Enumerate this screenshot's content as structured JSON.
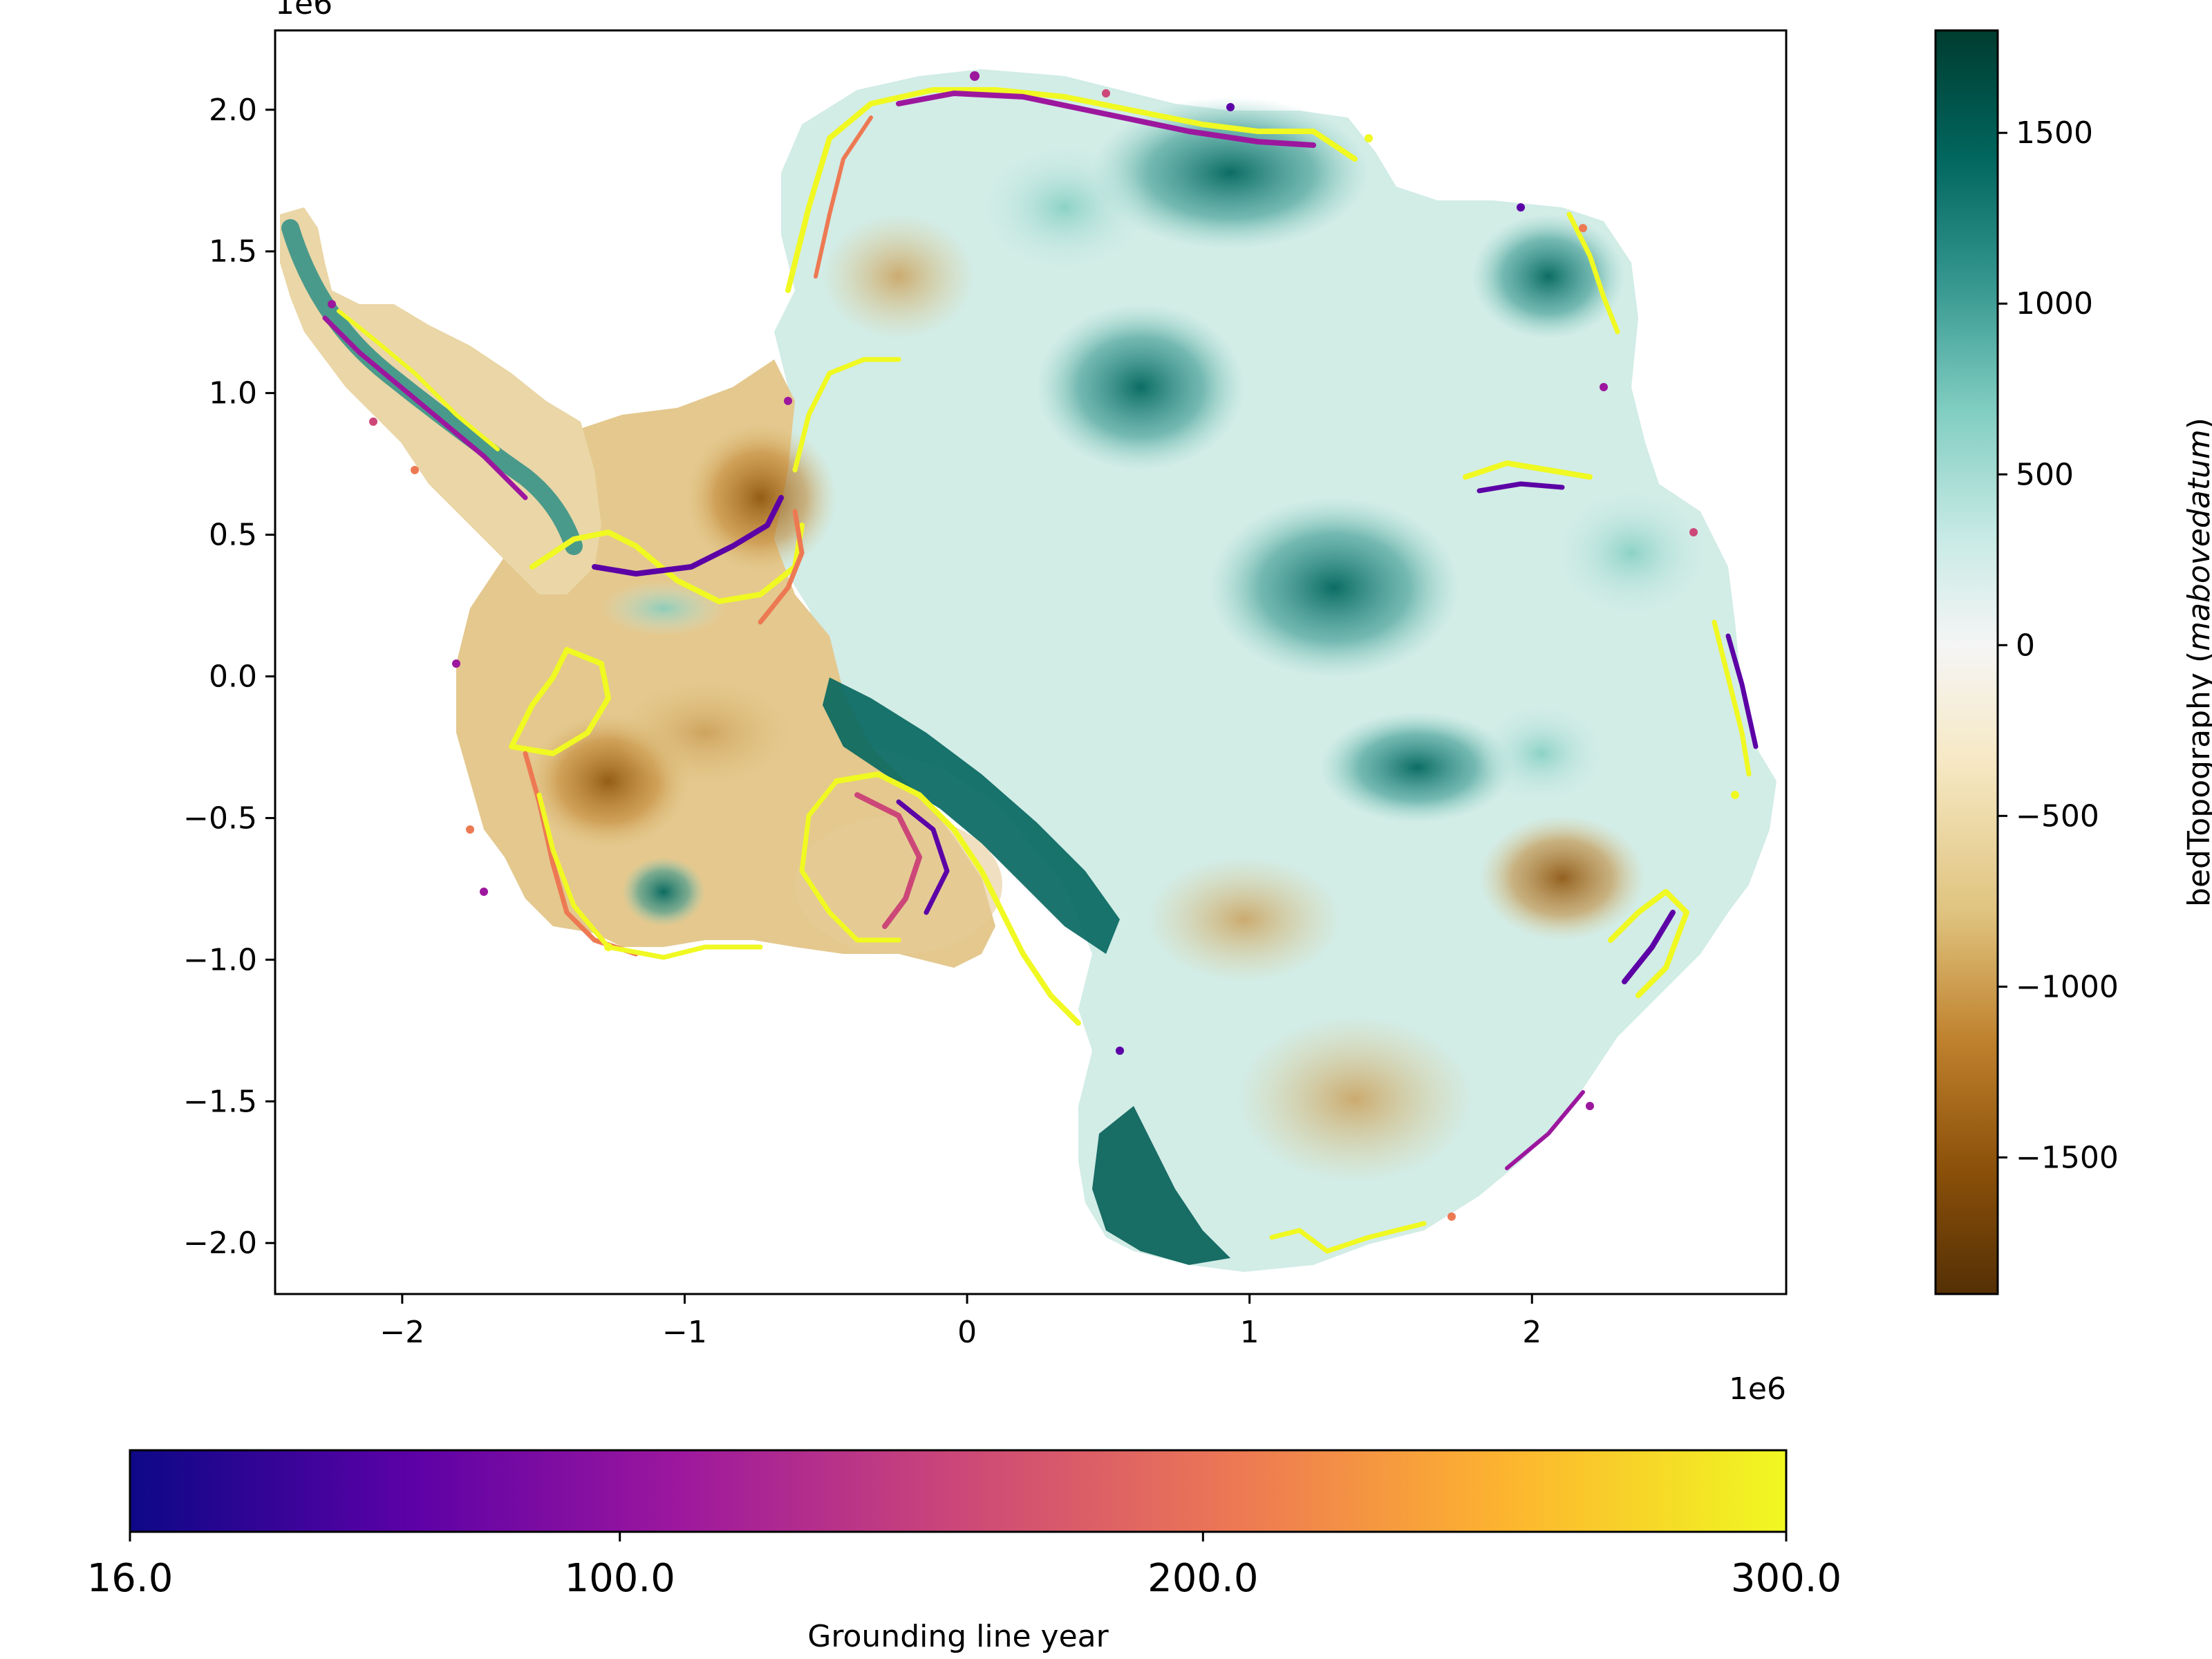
{
  "map": {
    "x_offset_label": "1e6",
    "y_offset_label": "1e6",
    "x_ticks": [
      {
        "value": -2,
        "label": "−2"
      },
      {
        "value": -1,
        "label": "−1"
      },
      {
        "value": 0,
        "label": "0"
      },
      {
        "value": 1,
        "label": "1"
      },
      {
        "value": 2,
        "label": "2"
      }
    ],
    "y_ticks": [
      {
        "value": 2.0,
        "label": "2.0"
      },
      {
        "value": 1.5,
        "label": "1.5"
      },
      {
        "value": 1.0,
        "label": "1.0"
      },
      {
        "value": 0.5,
        "label": "0.5"
      },
      {
        "value": 0.0,
        "label": "0.0"
      },
      {
        "value": -0.5,
        "label": "−0.5"
      },
      {
        "value": -1.0,
        "label": "−1.0"
      },
      {
        "value": -1.5,
        "label": "−1.5"
      },
      {
        "value": -2.0,
        "label": "−2.0"
      }
    ],
    "xlim": [
      -2.45,
      2.9
    ],
    "ylim": [
      -2.18,
      2.28
    ]
  },
  "bed_colorbar": {
    "label_main": "bedTopography (",
    "label_italic": "mabovedatum",
    "label_end": ")",
    "range": [
      -1900,
      1800
    ],
    "ticks": [
      {
        "value": 1500,
        "label": "1500"
      },
      {
        "value": 1000,
        "label": "1000"
      },
      {
        "value": 500,
        "label": "500"
      },
      {
        "value": 0,
        "label": "0"
      },
      {
        "value": -500,
        "label": "−500"
      },
      {
        "value": -1000,
        "label": "−1000"
      },
      {
        "value": -1500,
        "label": "−1500"
      }
    ],
    "colors": [
      "#543005",
      "#8c510a",
      "#bf812d",
      "#dfc27d",
      "#f6e8c3",
      "#f5f5f5",
      "#c7eae5",
      "#80cdc1",
      "#35978f",
      "#01665e",
      "#003c30"
    ]
  },
  "gl_colorbar": {
    "label": "Grounding line year",
    "range": [
      16.0,
      300.0
    ],
    "ticks": [
      {
        "value": 16.0,
        "label": "16.0"
      },
      {
        "value": 100.0,
        "label": "100.0"
      },
      {
        "value": 200.0,
        "label": "200.0"
      },
      {
        "value": 300.0,
        "label": "300.0"
      }
    ],
    "colors": [
      "#0d0887",
      "#5c01a6",
      "#9c179e",
      "#cc4778",
      "#ed7953",
      "#fdb42f",
      "#f0f921"
    ]
  }
}
